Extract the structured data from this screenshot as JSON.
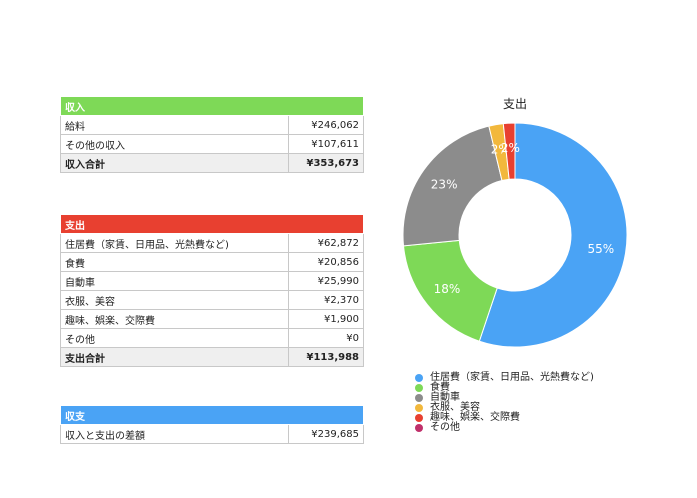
{
  "income": {
    "header": "収入",
    "rows": [
      {
        "label": "給料",
        "value": "¥246,062"
      },
      {
        "label": "その他の収入",
        "value": "¥107,611"
      }
    ],
    "total": {
      "label": "収入合計",
      "value": "¥353,673"
    }
  },
  "expense": {
    "header": "支出",
    "rows": [
      {
        "label": "住居費（家賃、日用品、光熱費など)",
        "value": "¥62,872"
      },
      {
        "label": "食費",
        "value": "¥20,856"
      },
      {
        "label": "自動車",
        "value": "¥25,990"
      },
      {
        "label": "衣服、美容",
        "value": "¥2,370"
      },
      {
        "label": "趣味、娯楽、交際費",
        "value": "¥1,900"
      },
      {
        "label": "その他",
        "value": "¥0"
      }
    ],
    "total": {
      "label": "支出合計",
      "value": "¥113,988"
    }
  },
  "balance": {
    "header": "収支",
    "rows": [
      {
        "label": "収入と支出の差額",
        "value": "¥239,685"
      }
    ]
  },
  "chart_data": {
    "type": "pie",
    "title": "支出",
    "categories": [
      "住居費（家賃、日用品、光熱費など)",
      "食費",
      "自動車",
      "衣服、美容",
      "趣味、娯楽、交際費",
      "その他"
    ],
    "values": [
      62872,
      20856,
      25990,
      2370,
      1900,
      0
    ],
    "labels": [
      "55%",
      "18%",
      "23%",
      "2%",
      "2%",
      ""
    ],
    "colors": [
      "#4aa3f5",
      "#7ed957",
      "#8c8c8c",
      "#f2b83c",
      "#e84030",
      "#c0306a"
    ],
    "legend": "bottom"
  }
}
